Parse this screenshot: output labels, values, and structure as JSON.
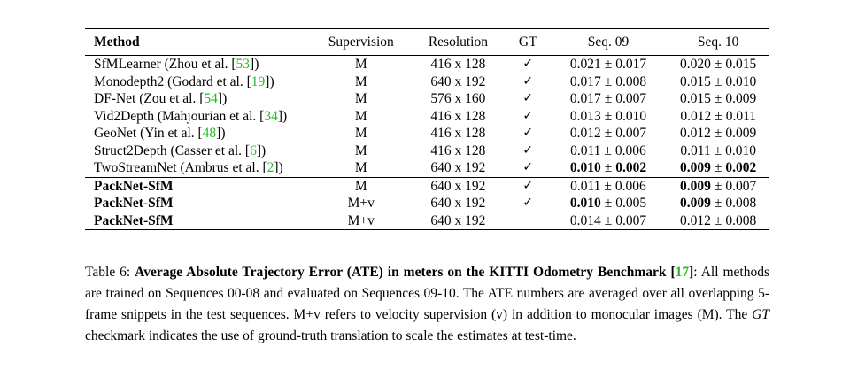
{
  "table": {
    "headers": {
      "method": "Method",
      "supervision": "Supervision",
      "resolution": "Resolution",
      "gt": "GT",
      "seq09": "Seq. 09",
      "seq10": "Seq. 10"
    },
    "pm": "±",
    "rows": [
      {
        "name": "SfMLearner (Zhou et al. [",
        "ref": "53",
        "tail": "])",
        "sup": "M",
        "res": "416 x 128",
        "gt": "✓",
        "s09": [
          "0.021",
          "0.017"
        ],
        "s10": [
          "0.020",
          "0.015"
        ]
      },
      {
        "name": "Monodepth2 (Godard et al. [",
        "ref": "19",
        "tail": "])",
        "sup": "M",
        "res": "640 x 192",
        "gt": "✓",
        "s09": [
          "0.017",
          "0.008"
        ],
        "s10": [
          "0.015",
          "0.010"
        ]
      },
      {
        "name": "DF-Net (Zou et al. [",
        "ref": "54",
        "tail": "])",
        "sup": "M",
        "res": "576 x 160",
        "gt": "✓",
        "s09": [
          "0.017",
          "0.007"
        ],
        "s10": [
          "0.015",
          "0.009"
        ]
      },
      {
        "name": "Vid2Depth (Mahjourian et al. [",
        "ref": "34",
        "tail": "])",
        "sup": "M",
        "res": "416 x 128",
        "gt": "✓",
        "s09": [
          "0.013",
          "0.010"
        ],
        "s10": [
          "0.012",
          "0.011"
        ]
      },
      {
        "name": "GeoNet (Yin et al. [",
        "ref": "48",
        "tail": "])",
        "sup": "M",
        "res": "416 x 128",
        "gt": "✓",
        "s09": [
          "0.012",
          "0.007"
        ],
        "s10": [
          "0.012",
          "0.009"
        ]
      },
      {
        "name": "Struct2Depth (Casser et al. [",
        "ref": "6",
        "tail": "])",
        "sup": "M",
        "res": "416 x 128",
        "gt": "✓",
        "s09": [
          "0.011",
          "0.006"
        ],
        "s10": [
          "0.011",
          "0.010"
        ]
      },
      {
        "name": "TwoStreamNet (Ambrus et al. [",
        "ref": "2",
        "tail": "])",
        "sup": "M",
        "res": "640 x 192",
        "gt": "✓",
        "s09": [
          "0.010",
          "0.002"
        ],
        "s10": [
          "0.009",
          "0.002"
        ]
      }
    ],
    "ours": [
      {
        "name": "PackNet-SfM",
        "sup": "M",
        "res": "640 x 192",
        "gt": "✓",
        "s09": [
          "0.011",
          "0.006"
        ],
        "s10": [
          "0.009",
          "0.007"
        ]
      },
      {
        "name": "PackNet-SfM",
        "sup": "M+v",
        "res": "640 x 192",
        "gt": "✓",
        "s09": [
          "0.010",
          "0.005"
        ],
        "s10": [
          "0.009",
          "0.008"
        ]
      },
      {
        "name": "PackNet-SfM",
        "sup": "M+v",
        "res": "640 x 192",
        "gt": "",
        "s09": [
          "0.014",
          "0.007"
        ],
        "s10": [
          "0.012",
          "0.008"
        ]
      }
    ]
  },
  "caption": {
    "label": "Table 6:",
    "title": "Average Absolute Trajectory Error (ATE) in meters on the KITTI Odometry Benchmark",
    "ref_open": "[",
    "ref": "17",
    "ref_close": "]",
    "text1": ": All methods are trained on Sequences 00-08 and evaluated on Sequences 09-10. The ATE numbers are averaged over all overlapping 5-frame snippets in the test sequences. M+v refers to velocity supervision (v) in addition to monocular images (M). The",
    "gt_italic": "GT",
    "text2": "checkmark indicates the use of ground-truth translation to scale the estimates at test-time."
  }
}
